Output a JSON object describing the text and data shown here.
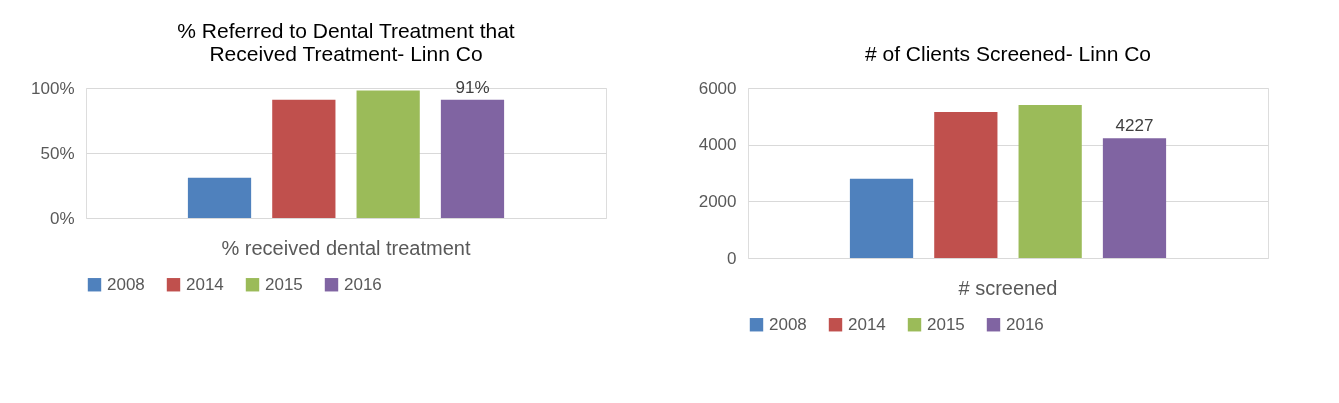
{
  "chart_data": [
    {
      "type": "bar",
      "title": "% Referred to Dental Treatment that Received Treatment- Linn Co",
      "categories": [
        "% received dental treatment"
      ],
      "series": [
        {
          "name": "2008",
          "color": "#4f81bd",
          "values": [
            31
          ]
        },
        {
          "name": "2014",
          "color": "#c0504d",
          "values": [
            91
          ]
        },
        {
          "name": "2015",
          "color": "#9bbb59",
          "values": [
            98
          ]
        },
        {
          "name": "2016",
          "color": "#8064a2",
          "values": [
            91
          ],
          "value_labels": [
            "91%"
          ]
        }
      ],
      "ylim": [
        0,
        100
      ],
      "yticks": [
        {
          "value": 0,
          "label": "0%"
        },
        {
          "value": 50,
          "label": "50%"
        },
        {
          "value": 100,
          "label": "100%"
        }
      ],
      "grid": "y",
      "legend": "bottom"
    },
    {
      "type": "bar",
      "title": "# of Clients Screened- Linn Co",
      "categories": [
        "# screened"
      ],
      "series": [
        {
          "name": "2008",
          "color": "#4f81bd",
          "values": [
            2800
          ]
        },
        {
          "name": "2014",
          "color": "#c0504d",
          "values": [
            5150
          ]
        },
        {
          "name": "2015",
          "color": "#9bbb59",
          "values": [
            5400
          ]
        },
        {
          "name": "2016",
          "color": "#8064a2",
          "values": [
            4227
          ],
          "value_labels": [
            "4227"
          ]
        }
      ],
      "ylim": [
        0,
        6000
      ],
      "yticks": [
        0,
        2000,
        4000,
        6000
      ],
      "grid": "y",
      "legend": "bottom"
    }
  ]
}
